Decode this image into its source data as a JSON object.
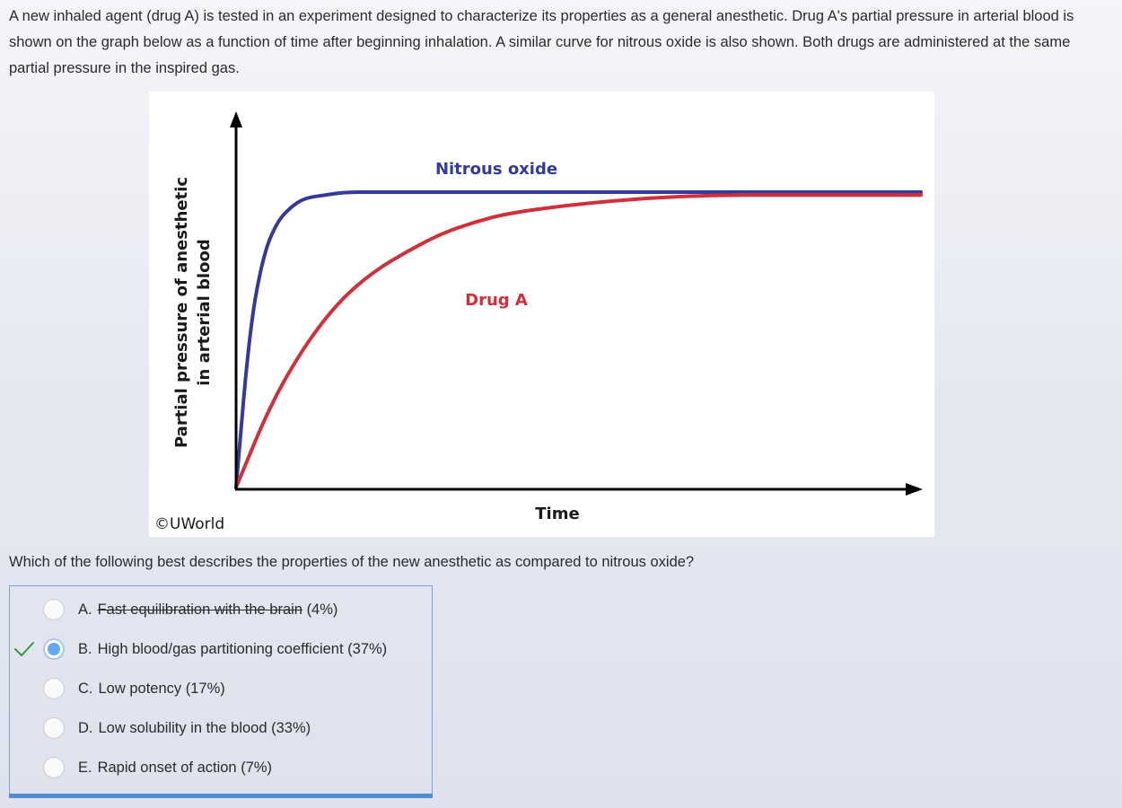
{
  "question": {
    "stem": "A new inhaled agent (drug A) is tested in an experiment designed to characterize its properties as a general anesthetic.  Drug A's partial pressure in arterial blood is shown on the graph below as a function of time after beginning inhalation.  A similar curve for nitrous oxide is also shown.  Both drugs are administered at the same partial pressure in the inspired gas.",
    "prompt": "Which of the following best describes the properties of the new anesthetic as compared to nitrous oxide?"
  },
  "figure": {
    "copyright": "©UWorld",
    "colors": {
      "nitrous_oxide": "#35399a",
      "drug_a": "#d1303a",
      "axis": "#000000"
    }
  },
  "chart_data": {
    "type": "line",
    "title": "",
    "xlabel": "Time",
    "ylabel": "Partial pressure of anesthetic in arterial blood",
    "ylabel_lines": [
      "Partial pressure of anesthetic",
      "in arterial blood"
    ],
    "x_ticks": [],
    "y_ticks": [],
    "grid": false,
    "legend": "inline labels",
    "series": [
      {
        "name": "Nitrous oxide",
        "color": "#35399a",
        "x": [
          0,
          0.02,
          0.04,
          0.06,
          0.08,
          0.1,
          0.13,
          0.16,
          0.2,
          0.25,
          0.3,
          0.4,
          0.5,
          0.6,
          0.8,
          1.0
        ],
        "y": [
          0,
          0.54,
          0.79,
          0.9,
          0.95,
          0.98,
          0.99,
          1.0,
          1.0,
          1.0,
          1.0,
          1.0,
          1.0,
          1.0,
          1.0,
          1.0
        ]
      },
      {
        "name": "Drug A",
        "color": "#d1303a",
        "x": [
          0,
          0.05,
          0.1,
          0.15,
          0.2,
          0.25,
          0.3,
          0.35,
          0.4,
          0.5,
          0.6,
          0.7,
          0.8,
          0.9,
          1.0
        ],
        "y": [
          0,
          0.28,
          0.48,
          0.63,
          0.73,
          0.8,
          0.86,
          0.9,
          0.93,
          0.96,
          0.98,
          0.99,
          0.99,
          0.99,
          0.99
        ]
      }
    ]
  },
  "answers": {
    "correct_mark": "check-icon",
    "choices": [
      {
        "letter": "A.",
        "text": "Fast equilibration with the brain",
        "percent": "(4%)",
        "selected": false,
        "struck": true
      },
      {
        "letter": "B.",
        "text": "High blood/gas partitioning coefficient",
        "percent": "(37%)",
        "selected": true,
        "struck": false
      },
      {
        "letter": "C.",
        "text": "Low potency",
        "percent": "(17%)",
        "selected": false,
        "struck": false
      },
      {
        "letter": "D.",
        "text": "Low solubility in the blood",
        "percent": "(33%)",
        "selected": false,
        "struck": false
      },
      {
        "letter": "E.",
        "text": "Rapid onset of action",
        "percent": "(7%)",
        "selected": false,
        "struck": false
      }
    ]
  }
}
